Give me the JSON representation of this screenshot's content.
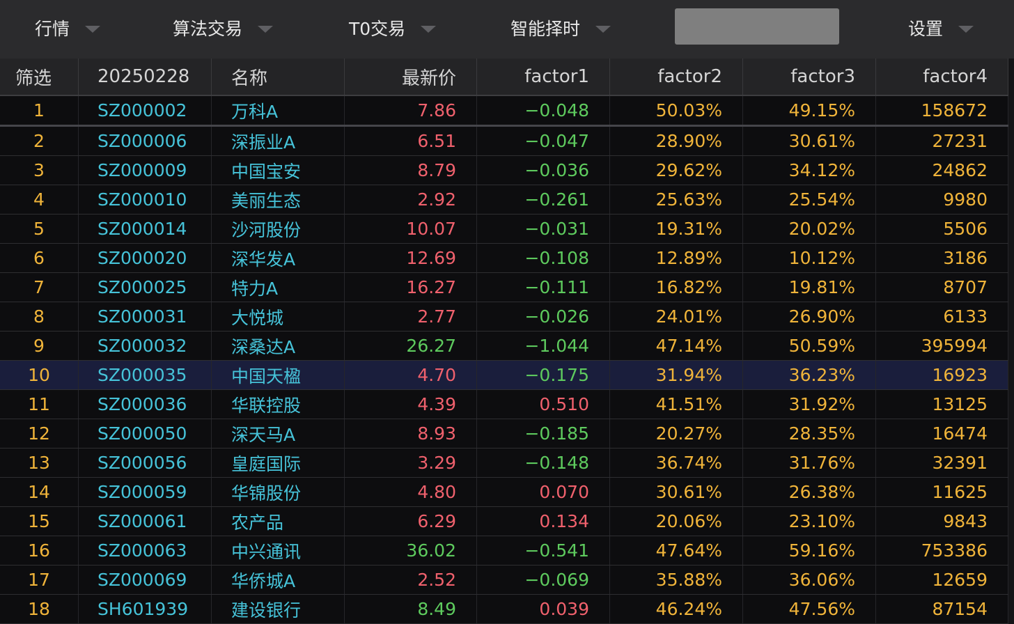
{
  "menu": [
    {
      "name": "menu-quotes",
      "label": "行情"
    },
    {
      "name": "menu-algo-trading",
      "label": "算法交易"
    },
    {
      "name": "menu-t0-trading",
      "label": "T0交易"
    },
    {
      "name": "menu-smart-timing",
      "label": "智能择时"
    },
    {
      "name": "menu-settings",
      "label": "设置"
    }
  ],
  "search": {
    "value": "",
    "placeholder": ""
  },
  "table": {
    "headers": [
      "筛选",
      "20250228",
      "名称",
      "最新价",
      "factor1",
      "factor2",
      "factor3",
      "factor4"
    ],
    "selected_row": 10,
    "rows": [
      {
        "idx": "1",
        "code": "SZ000002",
        "name": "万科A",
        "price": "7.86",
        "price_dir": "up",
        "f1": "−0.048",
        "f1_dir": "down",
        "f2": "50.03%",
        "f3": "49.15%",
        "f4": "158672"
      },
      {
        "idx": "2",
        "code": "SZ000006",
        "name": "深振业A",
        "price": "6.51",
        "price_dir": "up",
        "f1": "−0.047",
        "f1_dir": "down",
        "f2": "28.90%",
        "f3": "30.61%",
        "f4": "27231"
      },
      {
        "idx": "3",
        "code": "SZ000009",
        "name": "中国宝安",
        "price": "8.79",
        "price_dir": "up",
        "f1": "−0.036",
        "f1_dir": "down",
        "f2": "29.62%",
        "f3": "34.12%",
        "f4": "24862"
      },
      {
        "idx": "4",
        "code": "SZ000010",
        "name": "美丽生态",
        "price": "2.92",
        "price_dir": "up",
        "f1": "−0.261",
        "f1_dir": "down",
        "f2": "25.63%",
        "f3": "25.54%",
        "f4": "9980"
      },
      {
        "idx": "5",
        "code": "SZ000014",
        "name": "沙河股份",
        "price": "10.07",
        "price_dir": "up",
        "f1": "−0.031",
        "f1_dir": "down",
        "f2": "19.31%",
        "f3": "20.02%",
        "f4": "5506"
      },
      {
        "idx": "6",
        "code": "SZ000020",
        "name": "深华发A",
        "price": "12.69",
        "price_dir": "up",
        "f1": "−0.108",
        "f1_dir": "down",
        "f2": "12.89%",
        "f3": "10.12%",
        "f4": "3186"
      },
      {
        "idx": "7",
        "code": "SZ000025",
        "name": "特力A",
        "price": "16.27",
        "price_dir": "up",
        "f1": "−0.111",
        "f1_dir": "down",
        "f2": "16.82%",
        "f3": "19.81%",
        "f4": "8707"
      },
      {
        "idx": "8",
        "code": "SZ000031",
        "name": "大悦城",
        "price": "2.77",
        "price_dir": "up",
        "f1": "−0.026",
        "f1_dir": "down",
        "f2": "24.01%",
        "f3": "26.90%",
        "f4": "6133"
      },
      {
        "idx": "9",
        "code": "SZ000032",
        "name": "深桑达A",
        "price": "26.27",
        "price_dir": "down",
        "f1": "−1.044",
        "f1_dir": "down",
        "f2": "47.14%",
        "f3": "50.59%",
        "f4": "395994"
      },
      {
        "idx": "10",
        "code": "SZ000035",
        "name": "中国天楹",
        "price": "4.70",
        "price_dir": "up",
        "f1": "−0.175",
        "f1_dir": "down",
        "f2": "31.94%",
        "f3": "36.23%",
        "f4": "16923"
      },
      {
        "idx": "11",
        "code": "SZ000036",
        "name": "华联控股",
        "price": "4.39",
        "price_dir": "up",
        "f1": "0.510",
        "f1_dir": "up",
        "f2": "41.51%",
        "f3": "31.92%",
        "f4": "13125"
      },
      {
        "idx": "12",
        "code": "SZ000050",
        "name": "深天马A",
        "price": "8.93",
        "price_dir": "up",
        "f1": "−0.185",
        "f1_dir": "down",
        "f2": "20.27%",
        "f3": "28.35%",
        "f4": "16474"
      },
      {
        "idx": "13",
        "code": "SZ000056",
        "name": "皇庭国际",
        "price": "3.29",
        "price_dir": "up",
        "f1": "−0.148",
        "f1_dir": "down",
        "f2": "36.74%",
        "f3": "31.76%",
        "f4": "32391"
      },
      {
        "idx": "14",
        "code": "SZ000059",
        "name": "华锦股份",
        "price": "4.80",
        "price_dir": "up",
        "f1": "0.070",
        "f1_dir": "up",
        "f2": "30.61%",
        "f3": "26.38%",
        "f4": "11625"
      },
      {
        "idx": "15",
        "code": "SZ000061",
        "name": "农产品",
        "price": "6.29",
        "price_dir": "up",
        "f1": "0.134",
        "f1_dir": "up",
        "f2": "20.06%",
        "f3": "23.10%",
        "f4": "9843"
      },
      {
        "idx": "16",
        "code": "SZ000063",
        "name": "中兴通讯",
        "price": "36.02",
        "price_dir": "down",
        "f1": "−0.541",
        "f1_dir": "down",
        "f2": "47.64%",
        "f3": "59.16%",
        "f4": "753386"
      },
      {
        "idx": "17",
        "code": "SZ000069",
        "name": "华侨城A",
        "price": "2.52",
        "price_dir": "up",
        "f1": "−0.069",
        "f1_dir": "down",
        "f2": "35.88%",
        "f3": "36.06%",
        "f4": "12659"
      },
      {
        "idx": "18",
        "code": "SH601939",
        "name": "建设银行",
        "price": "8.49",
        "price_dir": "down",
        "f1": "0.039",
        "f1_dir": "up",
        "f2": "46.24%",
        "f3": "47.56%",
        "f4": "87154"
      }
    ]
  },
  "colors": {
    "up": "#f0616d",
    "down": "#5ecb5e",
    "accent": "#f0b43a",
    "code": "#46c3d9",
    "selected_row": "#1a1e3c"
  }
}
